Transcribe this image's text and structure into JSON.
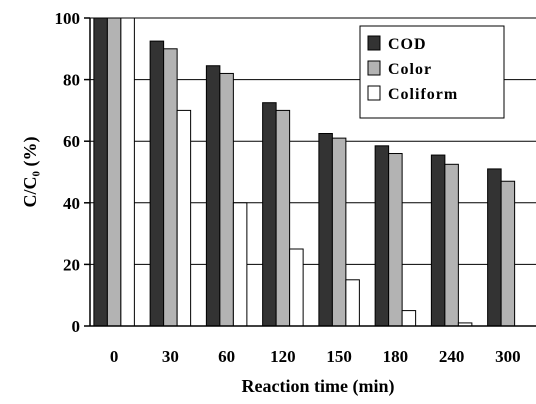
{
  "chart_data": {
    "type": "bar",
    "categories": [
      "0",
      "30",
      "60",
      "120",
      "150",
      "180",
      "240",
      "300"
    ],
    "series": [
      {
        "name": "COD",
        "values": [
          100,
          92.5,
          84.5,
          72.5,
          62.5,
          58.5,
          55.5,
          51
        ],
        "color": "#333333"
      },
      {
        "name": "Color",
        "values": [
          100,
          90,
          82,
          70,
          61,
          56,
          52.5,
          47
        ],
        "color": "#b3b3b3"
      },
      {
        "name": "Coliform",
        "values": [
          100,
          70,
          40,
          25,
          15,
          5,
          1,
          0
        ],
        "color": "#ffffff"
      }
    ],
    "ylim": [
      0,
      100
    ],
    "yticks": [
      0,
      20,
      40,
      60,
      80,
      100
    ],
    "xlabel": "Reaction time (min)",
    "ylabel": "C/C₀ (%)",
    "grid": true,
    "legend_position": "top-right"
  }
}
